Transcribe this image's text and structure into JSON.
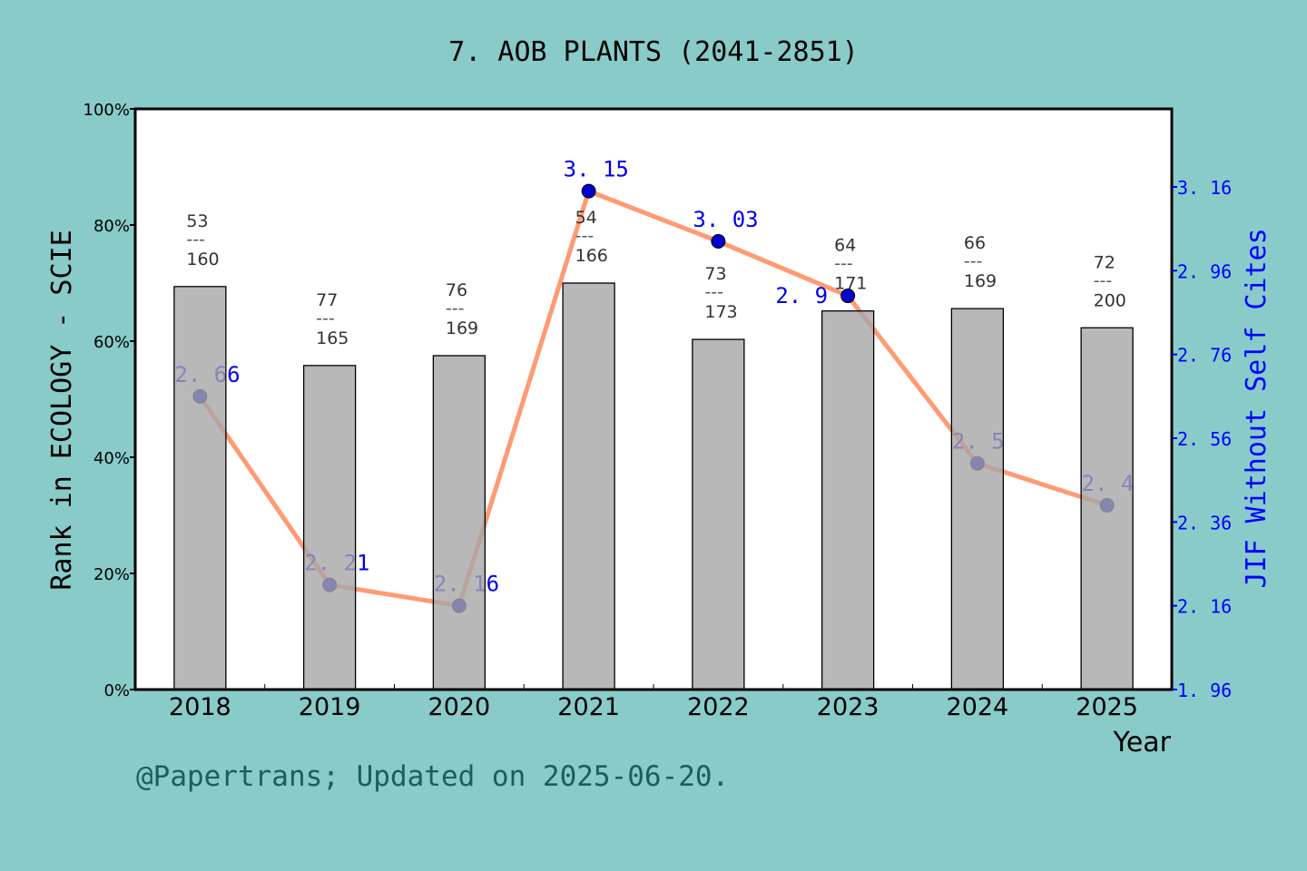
{
  "chart_data": {
    "type": "bar+line",
    "title": "7. AOB PLANTS (2041-2851)",
    "xlabel": "Year",
    "ylabel": "Rank in ECOLOGY - SCIE",
    "y2label": "JIF Without Self Cites",
    "categories": [
      "2018",
      "2019",
      "2020",
      "2021",
      "2022",
      "2023",
      "2024",
      "2025"
    ],
    "bar_series": {
      "values_percent": [
        69.4,
        55.8,
        57.5,
        70.0,
        60.3,
        65.2,
        65.6,
        62.3
      ],
      "rank": [
        "53",
        "77",
        "76",
        "54",
        "73",
        "64",
        "66",
        "72"
      ],
      "total": [
        "160",
        "165",
        "169",
        "166",
        "173",
        "171",
        "169",
        "200"
      ],
      "separator": "---",
      "color": "#a6a6a8"
    },
    "line_series": {
      "values": [
        2.66,
        2.21,
        2.16,
        3.15,
        3.03,
        2.9,
        2.5,
        2.4
      ],
      "labels": [
        "2. 66",
        "2. 21",
        "2. 16",
        "3. 15",
        "3. 03",
        "2. 9",
        "2. 5",
        "2. 4"
      ],
      "line_color": "#ff9a72",
      "marker_color": "#0000cc"
    },
    "ylim": [
      0,
      100
    ],
    "yticks": [
      "0%",
      "20%",
      "40%",
      "60%",
      "80%",
      "100%"
    ],
    "y2lim": [
      1.96,
      3.34
    ],
    "y2ticks": [
      "1. 96",
      "2. 16",
      "2. 36",
      "2. 56",
      "2. 76",
      "2. 96",
      "3. 16"
    ],
    "y2tick_values": [
      1.96,
      2.16,
      2.36,
      2.56,
      2.76,
      2.96,
      3.16
    ],
    "grid": false,
    "legend": "none",
    "axis2_color": "#0000ff"
  },
  "footer": "@Papertrans; Updated on 2025-06-20."
}
